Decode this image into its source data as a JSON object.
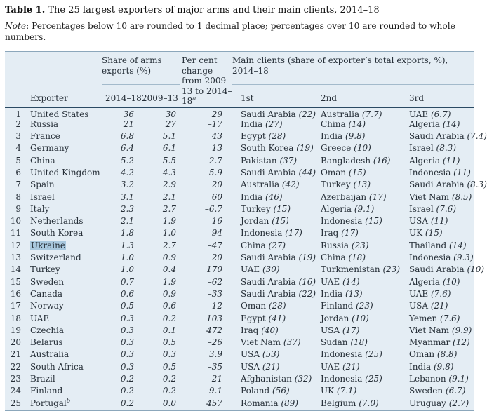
{
  "title": {
    "label": "Table 1.",
    "text": "The 25 largest exporters of major arms and their main clients, 2014–18"
  },
  "note": {
    "label": "Note",
    "text": ": Percentages below 10 are rounded to 1 decimal place; percentages over 10 are rounded to whole numbers."
  },
  "colors": {
    "table_background": "#e4edf4",
    "highlight": "#a9c8de",
    "header_rule": "#2a4a63",
    "table_border": "#8ca7bb"
  },
  "table": {
    "headers": {
      "share_group": "Share of arms exports (%)",
      "pct_change": {
        "text": "Per cent change from 2009–13 to 2014–18",
        "sup": "a"
      },
      "main_clients": "Main clients (share of exporter’s total exports, %), 2014–18",
      "exporter": "Exporter",
      "col_2014_18": "2014–18",
      "col_2009_13": "2009–13",
      "first": "1st",
      "second": "2nd",
      "third": "3rd"
    },
    "rows": [
      {
        "rank": "1",
        "exporter": "United States",
        "share_2014_18": "36",
        "share_2009_13": "30",
        "pct_change": "29",
        "clients": [
          {
            "name": "Saudi Arabia",
            "share": "22"
          },
          {
            "name": "Australia",
            "share": "7.7"
          },
          {
            "name": "UAE",
            "share": "6.7"
          }
        ]
      },
      {
        "rank": "2",
        "exporter": "Russia",
        "share_2014_18": "21",
        "share_2009_13": "27",
        "pct_change": "–17",
        "clients": [
          {
            "name": "India",
            "share": "27"
          },
          {
            "name": "China",
            "share": "14"
          },
          {
            "name": "Algeria",
            "share": "14"
          }
        ]
      },
      {
        "rank": "3",
        "exporter": "France",
        "share_2014_18": "6.8",
        "share_2009_13": "5.1",
        "pct_change": "43",
        "clients": [
          {
            "name": "Egypt",
            "share": "28"
          },
          {
            "name": "India",
            "share": "9.8"
          },
          {
            "name": "Saudi Arabia",
            "share": "7.4"
          }
        ]
      },
      {
        "rank": "4",
        "exporter": "Germany",
        "share_2014_18": "6.4",
        "share_2009_13": "6.1",
        "pct_change": "13",
        "clients": [
          {
            "name": "South Korea",
            "share": "19"
          },
          {
            "name": "Greece",
            "share": "10"
          },
          {
            "name": "Israel",
            "share": "8.3"
          }
        ]
      },
      {
        "rank": "5",
        "exporter": "China",
        "share_2014_18": "5.2",
        "share_2009_13": "5.5",
        "pct_change": "2.7",
        "clients": [
          {
            "name": "Pakistan",
            "share": "37"
          },
          {
            "name": "Bangladesh",
            "share": "16"
          },
          {
            "name": "Algeria",
            "share": "11"
          }
        ]
      },
      {
        "rank": "6",
        "exporter": "United Kingdom",
        "share_2014_18": "4.2",
        "share_2009_13": "4.3",
        "pct_change": "5.9",
        "clients": [
          {
            "name": "Saudi Arabia",
            "share": "44"
          },
          {
            "name": "Oman",
            "share": "15"
          },
          {
            "name": "Indonesia",
            "share": "11"
          }
        ]
      },
      {
        "rank": "7",
        "exporter": "Spain",
        "share_2014_18": "3.2",
        "share_2009_13": "2.9",
        "pct_change": "20",
        "clients": [
          {
            "name": "Australia",
            "share": "42"
          },
          {
            "name": "Turkey",
            "share": "13"
          },
          {
            "name": "Saudi Arabia",
            "share": "8.3"
          }
        ]
      },
      {
        "rank": "8",
        "exporter": "Israel",
        "share_2014_18": "3.1",
        "share_2009_13": "2.1",
        "pct_change": "60",
        "clients": [
          {
            "name": "India",
            "share": "46"
          },
          {
            "name": "Azerbaijan",
            "share": "17"
          },
          {
            "name": "Viet Nam",
            "share": "8.5"
          }
        ]
      },
      {
        "rank": "9",
        "exporter": "Italy",
        "share_2014_18": "2.3",
        "share_2009_13": "2.7",
        "pct_change": "–6.7",
        "clients": [
          {
            "name": "Turkey",
            "share": "15"
          },
          {
            "name": "Algeria",
            "share": "9.1"
          },
          {
            "name": "Israel",
            "share": "7.6"
          }
        ]
      },
      {
        "rank": "10",
        "exporter": "Netherlands",
        "share_2014_18": "2.1",
        "share_2009_13": "1.9",
        "pct_change": "16",
        "clients": [
          {
            "name": "Jordan",
            "share": "15"
          },
          {
            "name": "Indonesia",
            "share": "15"
          },
          {
            "name": "USA",
            "share": "11"
          }
        ]
      },
      {
        "rank": "11",
        "exporter": "South Korea",
        "share_2014_18": "1.8",
        "share_2009_13": "1.0",
        "pct_change": "94",
        "clients": [
          {
            "name": "Indonesia",
            "share": "17"
          },
          {
            "name": "Iraq",
            "share": "17"
          },
          {
            "name": "UK",
            "share": "15"
          }
        ]
      },
      {
        "rank": "12",
        "exporter": "Ukraine",
        "highlight": true,
        "share_2014_18": "1.3",
        "share_2009_13": "2.7",
        "pct_change": "–47",
        "clients": [
          {
            "name": "China",
            "share": "27"
          },
          {
            "name": "Russia",
            "share": "23"
          },
          {
            "name": "Thailand",
            "share": "14"
          }
        ]
      },
      {
        "rank": "13",
        "exporter": "Switzerland",
        "share_2014_18": "1.0",
        "share_2009_13": "0.9",
        "pct_change": "20",
        "clients": [
          {
            "name": "Saudi Arabia",
            "share": "19"
          },
          {
            "name": "China",
            "share": "18"
          },
          {
            "name": "Indonesia",
            "share": "9.3"
          }
        ]
      },
      {
        "rank": "14",
        "exporter": "Turkey",
        "share_2014_18": "1.0",
        "share_2009_13": "0.4",
        "pct_change": "170",
        "clients": [
          {
            "name": "UAE",
            "share": "30"
          },
          {
            "name": "Turkmenistan",
            "share": "23"
          },
          {
            "name": "Saudi Arabia",
            "share": "10"
          }
        ]
      },
      {
        "rank": "15",
        "exporter": "Sweden",
        "share_2014_18": "0.7",
        "share_2009_13": "1.9",
        "pct_change": "–62",
        "clients": [
          {
            "name": "Saudi Arabia",
            "share": "16"
          },
          {
            "name": "UAE",
            "share": "14"
          },
          {
            "name": "Algeria",
            "share": "10"
          }
        ]
      },
      {
        "rank": "16",
        "exporter": "Canada",
        "share_2014_18": "0.6",
        "share_2009_13": "0.9",
        "pct_change": "–33",
        "clients": [
          {
            "name": "Saudi Arabia",
            "share": "22"
          },
          {
            "name": "India",
            "share": "13"
          },
          {
            "name": "UAE",
            "share": "7.6"
          }
        ]
      },
      {
        "rank": "17",
        "exporter": "Norway",
        "share_2014_18": "0.5",
        "share_2009_13": "0.6",
        "pct_change": "–12",
        "clients": [
          {
            "name": "Oman",
            "share": "28"
          },
          {
            "name": "Finland",
            "share": "23"
          },
          {
            "name": "USA",
            "share": "21"
          }
        ]
      },
      {
        "rank": "18",
        "exporter": "UAE",
        "share_2014_18": "0.3",
        "share_2009_13": "0.2",
        "pct_change": "103",
        "clients": [
          {
            "name": "Egypt",
            "share": "41"
          },
          {
            "name": "Jordan",
            "share": "10"
          },
          {
            "name": "Yemen",
            "share": "7.6"
          }
        ]
      },
      {
        "rank": "19",
        "exporter": "Czechia",
        "share_2014_18": "0.3",
        "share_2009_13": "0.1",
        "pct_change": "472",
        "clients": [
          {
            "name": "Iraq",
            "share": "40"
          },
          {
            "name": "USA",
            "share": "17"
          },
          {
            "name": "Viet Nam",
            "share": "9.9"
          }
        ]
      },
      {
        "rank": "20",
        "exporter": "Belarus",
        "share_2014_18": "0.3",
        "share_2009_13": "0.5",
        "pct_change": "–26",
        "clients": [
          {
            "name": "Viet Nam",
            "share": "37"
          },
          {
            "name": "Sudan",
            "share": "18"
          },
          {
            "name": "Myanmar",
            "share": "12"
          }
        ]
      },
      {
        "rank": "21",
        "exporter": "Australia",
        "share_2014_18": "0.3",
        "share_2009_13": "0.3",
        "pct_change": "3.9",
        "clients": [
          {
            "name": "USA",
            "share": "53"
          },
          {
            "name": "Indonesia",
            "share": "25"
          },
          {
            "name": "Oman",
            "share": "8.8"
          }
        ]
      },
      {
        "rank": "22",
        "exporter": "South Africa",
        "share_2014_18": "0.3",
        "share_2009_13": "0.5",
        "pct_change": "–35",
        "clients": [
          {
            "name": "USA",
            "share": "21"
          },
          {
            "name": "UAE",
            "share": "21"
          },
          {
            "name": "India",
            "share": "9.8"
          }
        ]
      },
      {
        "rank": "23",
        "exporter": "Brazil",
        "share_2014_18": "0.2",
        "share_2009_13": "0.2",
        "pct_change": "21",
        "clients": [
          {
            "name": "Afghanistan",
            "share": "32"
          },
          {
            "name": "Indonesia",
            "share": "25"
          },
          {
            "name": "Lebanon",
            "share": "9.1"
          }
        ]
      },
      {
        "rank": "24",
        "exporter": "Finland",
        "share_2014_18": "0.2",
        "share_2009_13": "0.2",
        "pct_change": "–9.1",
        "clients": [
          {
            "name": "Poland",
            "share": "56"
          },
          {
            "name": "UK",
            "share": "7.1"
          },
          {
            "name": "Sweden",
            "share": "6.7"
          }
        ]
      },
      {
        "rank": "25",
        "exporter": "Portugal",
        "sup": "b",
        "share_2014_18": "0.2",
        "share_2009_13": "0.0",
        "pct_change": "457",
        "clients": [
          {
            "name": "Romania",
            "share": "89"
          },
          {
            "name": "Belgium",
            "share": "7.0"
          },
          {
            "name": "Uruguay",
            "share": "2.7"
          }
        ]
      }
    ]
  }
}
